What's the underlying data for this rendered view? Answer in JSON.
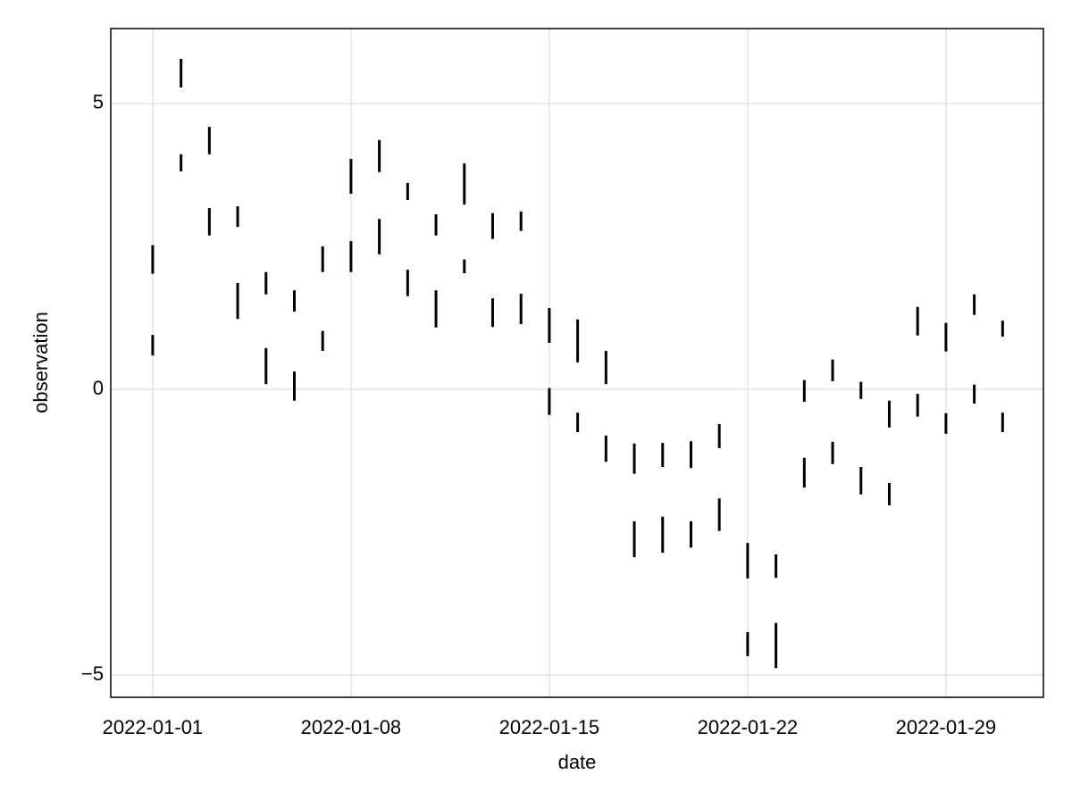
{
  "chart_data": {
    "type": "rangebar",
    "x_label": "date",
    "y_label": "observation",
    "x": [
      "2022-01-01",
      "2022-01-02",
      "2022-01-03",
      "2022-01-04",
      "2022-01-05",
      "2022-01-06",
      "2022-01-07",
      "2022-01-08",
      "2022-01-09",
      "2022-01-10",
      "2022-01-11",
      "2022-01-12",
      "2022-01-13",
      "2022-01-14",
      "2022-01-15",
      "2022-01-16",
      "2022-01-17",
      "2022-01-18",
      "2022-01-19",
      "2022-01-20",
      "2022-01-21",
      "2022-01-22",
      "2022-01-23",
      "2022-01-24",
      "2022-01-25",
      "2022-01-26",
      "2022-01-27",
      "2022-01-28",
      "2022-01-29",
      "2022-01-30",
      "2022-01-31"
    ],
    "series": [
      {
        "color": "#000000",
        "high": [
          2.52,
          5.78,
          4.59,
          3.2,
          2.05,
          1.73,
          2.5,
          4.03,
          4.36,
          3.61,
          3.06,
          3.95,
          3.08,
          3.11,
          1.42,
          1.22,
          0.67,
          -0.95,
          -0.94,
          -0.91,
          -0.61,
          -2.69,
          -2.89,
          0.16,
          0.52,
          0.13,
          -0.2,
          1.44,
          1.16,
          1.66,
          1.2
        ],
        "low": [
          2.02,
          5.28,
          4.11,
          2.84,
          1.66,
          1.36,
          2.05,
          3.42,
          3.8,
          3.31,
          2.69,
          3.23,
          2.63,
          2.77,
          0.81,
          0.47,
          0.09,
          -1.48,
          -1.36,
          -1.38,
          -1.03,
          -3.31,
          -3.3,
          -0.22,
          0.14,
          -0.17,
          -0.67,
          0.94,
          0.66,
          1.3,
          0.92
        ]
      },
      {
        "color": "#000000",
        "high": [
          0.95,
          4.11,
          3.17,
          1.86,
          0.72,
          0.31,
          1.02,
          2.59,
          2.98,
          2.09,
          1.73,
          2.27,
          1.59,
          1.67,
          0.02,
          -0.41,
          -0.81,
          -2.31,
          -2.23,
          -2.31,
          -1.91,
          -4.25,
          -4.09,
          -1.2,
          -0.92,
          -1.36,
          -1.64,
          -0.08,
          -0.42,
          0.08,
          -0.41
        ],
        "low": [
          0.59,
          3.81,
          2.69,
          1.23,
          0.09,
          -0.2,
          0.67,
          2.05,
          2.36,
          1.63,
          1.08,
          2.03,
          1.09,
          1.14,
          -0.45,
          -0.75,
          -1.27,
          -2.94,
          -2.86,
          -2.77,
          -2.48,
          -4.67,
          -4.88,
          -1.72,
          -1.31,
          -1.84,
          -2.03,
          -0.48,
          -0.78,
          -0.25,
          -0.75
        ]
      }
    ],
    "xlim": [
      "2021-12-30T12:30",
      "2022-02-01T10:34"
    ],
    "xticks": [
      "2022-01-01",
      "2022-01-08",
      "2022-01-15",
      "2022-01-22",
      "2022-01-29"
    ],
    "ylim": [
      -5.39,
      6.31
    ],
    "yticks": [
      {
        "value": -5,
        "label": "−5"
      },
      0,
      5
    ],
    "grid": true
  }
}
